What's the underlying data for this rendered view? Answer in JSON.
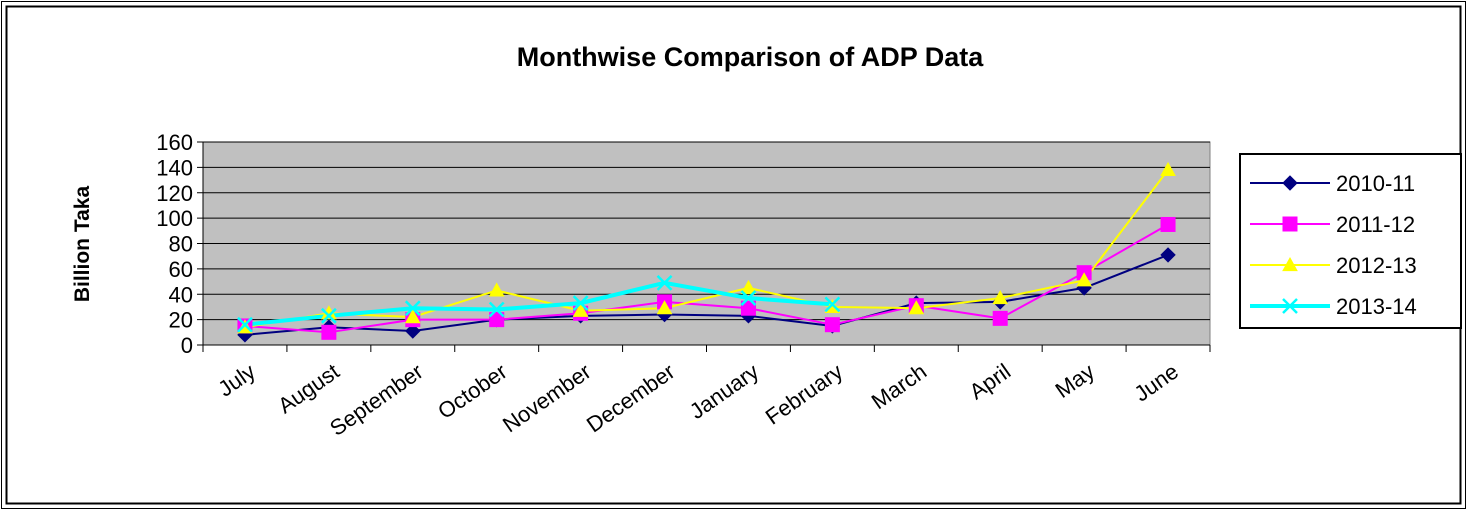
{
  "chart_data": {
    "type": "line",
    "title": "Monthwise Comparison of ADP Data",
    "xlabel": "",
    "ylabel": "Billion Taka",
    "categories": [
      "July",
      "August",
      "September",
      "October",
      "November",
      "December",
      "January",
      "February",
      "March",
      "April",
      "May",
      "June"
    ],
    "ylim": [
      0,
      160
    ],
    "yticks": [
      0,
      20,
      40,
      60,
      80,
      100,
      120,
      140,
      160
    ],
    "grid": true,
    "legend_position": "right",
    "plot_background": "#c0c0c0",
    "series": [
      {
        "name": "2010-11",
        "color": "#000080",
        "marker": "diamond",
        "values": [
          8,
          14,
          11,
          20,
          23,
          24,
          23,
          15,
          33,
          34,
          45,
          71
        ]
      },
      {
        "name": "2011-12",
        "color": "#ff00ff",
        "marker": "square",
        "values": [
          15,
          10,
          20,
          20,
          25,
          34,
          29,
          16,
          31,
          21,
          57,
          95
        ]
      },
      {
        "name": "2012-13",
        "color": "#ffff00",
        "marker": "triangle",
        "values": [
          14,
          25,
          22,
          43,
          27,
          29,
          45,
          30,
          29,
          37,
          51,
          138
        ]
      },
      {
        "name": "2013-14",
        "color": "#00ffff",
        "marker": "x",
        "values": [
          16,
          23,
          29,
          28,
          33,
          49,
          37,
          32,
          null,
          null,
          null,
          null
        ]
      }
    ]
  }
}
